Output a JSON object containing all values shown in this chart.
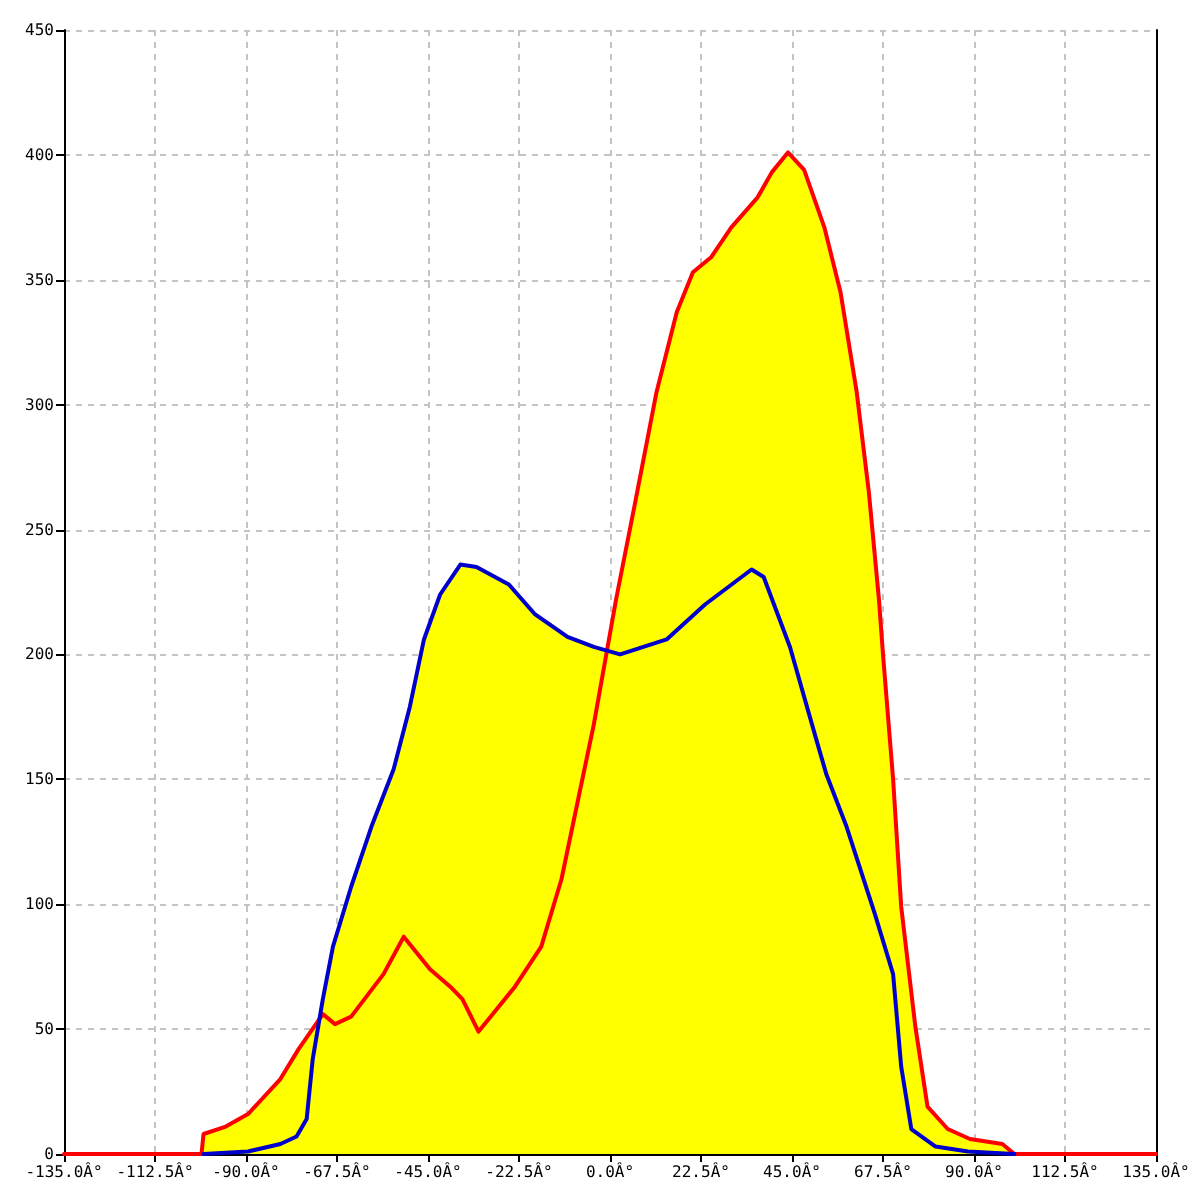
{
  "chart_data": {
    "type": "line",
    "marker": "none",
    "line_style": "solid",
    "grid": true,
    "xlim": [
      -135,
      135
    ],
    "xticks": [
      {
        "value": -135,
        "label": "-135.0Â°"
      },
      {
        "value": -112.5,
        "label": "-112.5Â°"
      },
      {
        "value": -90,
        "label": "-90.0Â°"
      },
      {
        "value": -67.5,
        "label": "-67.5Â°"
      },
      {
        "value": -45,
        "label": "-45.0Â°"
      },
      {
        "value": -22.5,
        "label": "-22.5Â°"
      },
      {
        "value": 0,
        "label": "0.0Â°"
      },
      {
        "value": 22.5,
        "label": "22.5Â°"
      },
      {
        "value": 45,
        "label": "45.0Â°"
      },
      {
        "value": 67.5,
        "label": "67.5Â°"
      },
      {
        "value": 90,
        "label": "90.0Â°"
      },
      {
        "value": 112.5,
        "label": "112.5Â°"
      },
      {
        "value": 135,
        "label": "135.0Â°"
      }
    ],
    "ylim": [
      0,
      450
    ],
    "yticks": [
      0,
      50,
      100,
      150,
      200,
      250,
      300,
      350,
      400,
      450
    ],
    "series": [
      {
        "type": "area",
        "color": "#ffff00",
        "x": [
          -101,
          -100.5,
          -95,
          -89.5,
          -81.5,
          -77,
          -72,
          -71,
          -68.5,
          -64,
          -59,
          -53.5,
          -49.5,
          -46,
          -42,
          -37,
          -33,
          -25,
          -18.5,
          -10.5,
          -4,
          -0.5,
          1.5,
          6,
          11.5,
          16.5,
          20.5,
          25,
          30,
          36.5,
          40,
          44,
          48,
          53,
          57,
          61,
          64,
          66.5,
          67.5,
          70,
          72,
          75.5,
          78.5,
          83.5,
          89,
          97,
          100
        ],
        "values": [
          0,
          8,
          11,
          16,
          30,
          42,
          53,
          62,
          83,
          107,
          131,
          154,
          179,
          206,
          224,
          236,
          235,
          228,
          216,
          207,
          203,
          202,
          222,
          259,
          305,
          337,
          353,
          359,
          371,
          383,
          393,
          401,
          394,
          371,
          345,
          305,
          265,
          222,
          200,
          150,
          99,
          51,
          19,
          10,
          6,
          4,
          0
        ]
      },
      {
        "color": "#ff0000",
        "x": [
          -135,
          -101,
          -100.5,
          -95,
          -89.5,
          -81.5,
          -77,
          -71,
          -68,
          -64,
          -56,
          -51,
          -44.5,
          -39.5,
          -36.5,
          -32.5,
          -23.5,
          -17,
          -12,
          -4,
          1.5,
          6,
          11.5,
          16.5,
          20.5,
          25,
          30,
          36.5,
          40,
          44,
          48,
          53,
          57,
          61,
          64,
          66.5,
          67.5,
          70,
          72,
          75.5,
          78.5,
          83.5,
          89,
          97,
          100,
          135
        ],
        "values": [
          0,
          0,
          8,
          11,
          16,
          30,
          42,
          56,
          52,
          55,
          72,
          87,
          74,
          67,
          62,
          49,
          67,
          83,
          110,
          172,
          222,
          259,
          305,
          337,
          353,
          359,
          371,
          383,
          393,
          401,
          394,
          371,
          345,
          305,
          265,
          222,
          200,
          150,
          99,
          51,
          19,
          10,
          6,
          4,
          0,
          0
        ]
      },
      {
        "color": "#0000cc",
        "x": [
          -100.5,
          -89.5,
          -81.5,
          -77.5,
          -75,
          -73.5,
          -71,
          -68.5,
          -64,
          -59,
          -53.5,
          -49.5,
          -46,
          -42,
          -37,
          -33,
          -25,
          -18.5,
          -10.5,
          -4,
          2.5,
          14,
          23.5,
          35,
          38,
          44.5,
          51,
          53.5,
          58.5,
          65.5,
          70,
          72,
          74.5,
          80.5,
          88.5,
          100
        ],
        "values": [
          0,
          1,
          4,
          7,
          14,
          38,
          62,
          83,
          107,
          131,
          154,
          179,
          206,
          224,
          236,
          235,
          228,
          216,
          207,
          203,
          200,
          206,
          220,
          234,
          231,
          203,
          166,
          152,
          131,
          96,
          72,
          35,
          10,
          3,
          1,
          0
        ]
      }
    ]
  }
}
